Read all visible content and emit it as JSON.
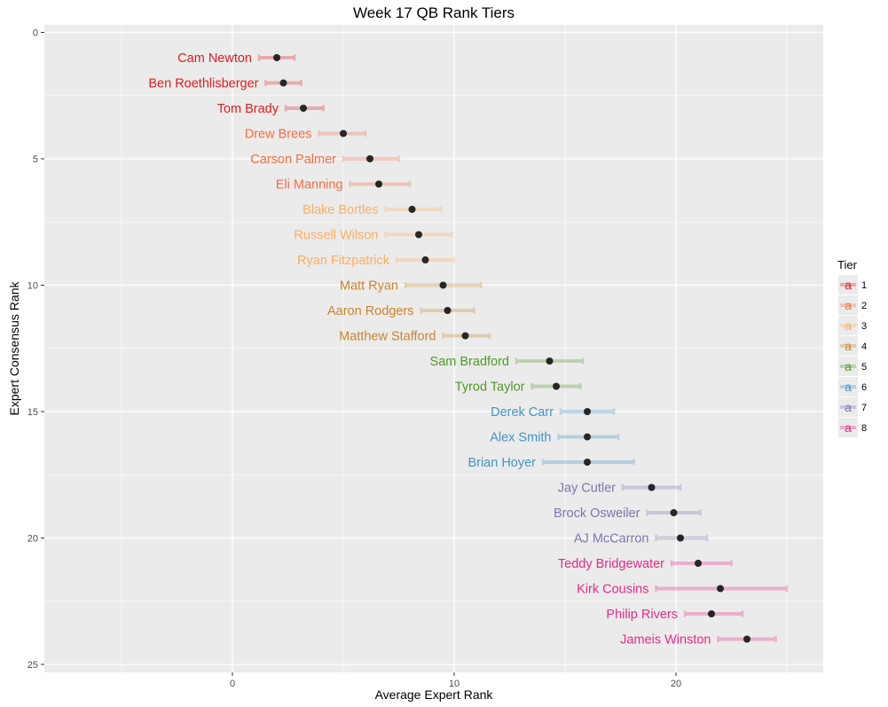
{
  "chart_data": {
    "type": "scatter",
    "title": "Week 17 QB Rank Tiers",
    "xlabel": "Average Expert Rank",
    "ylabel": "Expert Consensus Rank",
    "xlim": [
      -8.5,
      26.5
    ],
    "ylim": [
      0,
      25
    ],
    "y_reversed": true,
    "x_ticks": [
      0,
      10,
      20
    ],
    "y_ticks": [
      0,
      5,
      10,
      15,
      20,
      25
    ],
    "grid": true,
    "legend": {
      "title": "Tier",
      "placement": "right",
      "key_glyph": "a",
      "entries": [
        {
          "label": "1",
          "color": "#e41a1c"
        },
        {
          "label": "2",
          "color": "#f46d43"
        },
        {
          "label": "3",
          "color": "#fdae61"
        },
        {
          "label": "4",
          "color": "#c9852b"
        },
        {
          "label": "5",
          "color": "#4d9a26"
        },
        {
          "label": "6",
          "color": "#4393c3"
        },
        {
          "label": "7",
          "color": "#8073ac"
        },
        {
          "label": "8",
          "color": "#e7298a"
        }
      ]
    },
    "points": [
      {
        "name": "Cam Newton",
        "rank": 1,
        "avg": 2.0,
        "lo": 1.2,
        "hi": 2.8,
        "tier": 1
      },
      {
        "name": "Ben Roethlisberger",
        "rank": 2,
        "avg": 2.3,
        "lo": 1.5,
        "hi": 3.1,
        "tier": 1
      },
      {
        "name": "Tom Brady",
        "rank": 3,
        "avg": 3.2,
        "lo": 2.4,
        "hi": 4.1,
        "tier": 1
      },
      {
        "name": "Drew Brees",
        "rank": 4,
        "avg": 5.0,
        "lo": 3.9,
        "hi": 6.0,
        "tier": 2
      },
      {
        "name": "Carson Palmer",
        "rank": 5,
        "avg": 6.2,
        "lo": 5.0,
        "hi": 7.5,
        "tier": 2
      },
      {
        "name": "Eli Manning",
        "rank": 6,
        "avg": 6.6,
        "lo": 5.3,
        "hi": 8.0,
        "tier": 2
      },
      {
        "name": "Blake Bortles",
        "rank": 7,
        "avg": 8.1,
        "lo": 6.9,
        "hi": 9.4,
        "tier": 3
      },
      {
        "name": "Russell Wilson",
        "rank": 8,
        "avg": 8.4,
        "lo": 6.9,
        "hi": 9.9,
        "tier": 3
      },
      {
        "name": "Ryan Fitzpatrick",
        "rank": 9,
        "avg": 8.7,
        "lo": 7.4,
        "hi": 10.0,
        "tier": 3
      },
      {
        "name": "Matt Ryan",
        "rank": 10,
        "avg": 9.5,
        "lo": 7.8,
        "hi": 11.2,
        "tier": 4
      },
      {
        "name": "Aaron Rodgers",
        "rank": 11,
        "avg": 9.7,
        "lo": 8.5,
        "hi": 10.9,
        "tier": 4
      },
      {
        "name": "Matthew Stafford",
        "rank": 12,
        "avg": 10.5,
        "lo": 9.5,
        "hi": 11.6,
        "tier": 4
      },
      {
        "name": "Sam Bradford",
        "rank": 13,
        "avg": 14.3,
        "lo": 12.8,
        "hi": 15.8,
        "tier": 5
      },
      {
        "name": "Tyrod Taylor",
        "rank": 14,
        "avg": 14.6,
        "lo": 13.5,
        "hi": 15.7,
        "tier": 5
      },
      {
        "name": "Derek Carr",
        "rank": 15,
        "avg": 16.0,
        "lo": 14.8,
        "hi": 17.2,
        "tier": 6
      },
      {
        "name": "Alex Smith",
        "rank": 16,
        "avg": 16.0,
        "lo": 14.7,
        "hi": 17.4,
        "tier": 6
      },
      {
        "name": "Brian Hoyer",
        "rank": 17,
        "avg": 16.0,
        "lo": 14.0,
        "hi": 18.1,
        "tier": 6
      },
      {
        "name": "Jay Cutler",
        "rank": 18,
        "avg": 18.9,
        "lo": 17.6,
        "hi": 20.2,
        "tier": 7
      },
      {
        "name": "Brock Osweiler",
        "rank": 19,
        "avg": 19.9,
        "lo": 18.7,
        "hi": 21.1,
        "tier": 7
      },
      {
        "name": "AJ McCarron",
        "rank": 20,
        "avg": 20.2,
        "lo": 19.1,
        "hi": 21.4,
        "tier": 7
      },
      {
        "name": "Teddy Bridgewater",
        "rank": 21,
        "avg": 21.0,
        "lo": 19.8,
        "hi": 22.5,
        "tier": 8
      },
      {
        "name": "Kirk Cousins",
        "rank": 22,
        "avg": 22.0,
        "lo": 19.1,
        "hi": 25.0,
        "tier": 8
      },
      {
        "name": "Philip Rivers",
        "rank": 23,
        "avg": 21.6,
        "lo": 20.4,
        "hi": 23.0,
        "tier": 8
      },
      {
        "name": "Jameis Winston",
        "rank": 24,
        "avg": 23.2,
        "lo": 21.9,
        "hi": 24.5,
        "tier": 8
      }
    ]
  }
}
